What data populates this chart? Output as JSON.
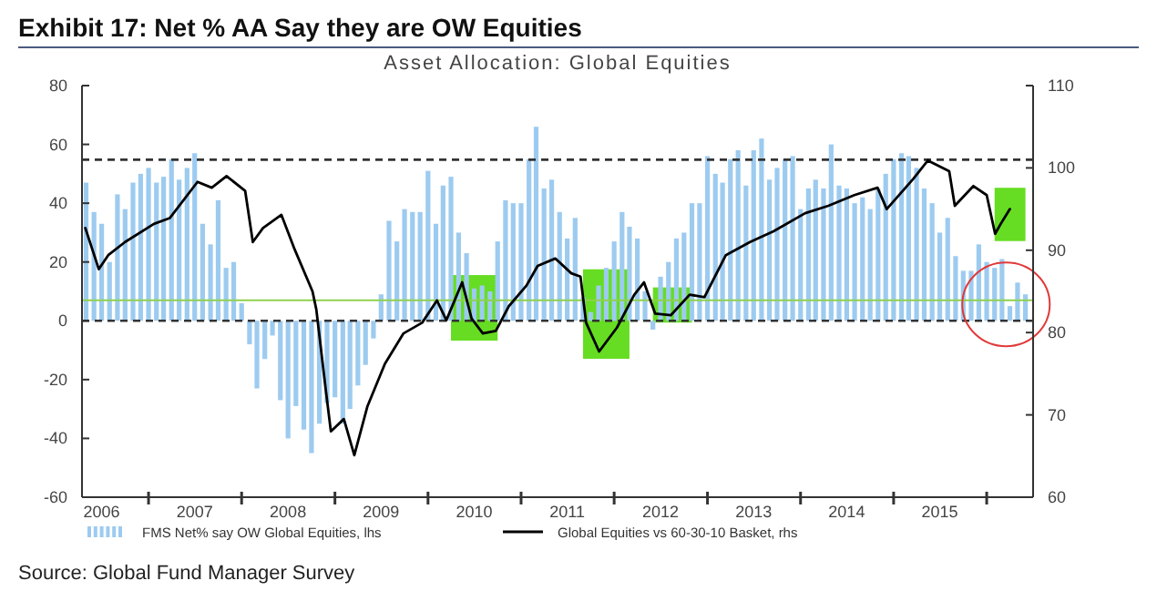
{
  "chart_data": {
    "type": "bar",
    "title": "Exhibit 17: Net % AA Say they are OW Equities",
    "subtitle": "Asset Allocation: Global Equities",
    "annotations": [
      "Source: Global Fund Manager Survey"
    ],
    "xlim": [
      "2006-04-15",
      "2016-07"
    ],
    "xticks": [
      {
        "value": "2006-07",
        "label": "2006"
      },
      {
        "value": "2007-01",
        "label": null
      },
      {
        "value": "2007-07",
        "label": "2007"
      },
      {
        "value": "2008-01",
        "label": null
      },
      {
        "value": "2008-07",
        "label": "2008"
      },
      {
        "value": "2009-01",
        "label": null
      },
      {
        "value": "2009-07",
        "label": "2009"
      },
      {
        "value": "2010-01",
        "label": null
      },
      {
        "value": "2010-07",
        "label": "2010"
      },
      {
        "value": "2011-01",
        "label": null
      },
      {
        "value": "2011-07",
        "label": "2011"
      },
      {
        "value": "2012-01",
        "label": null
      },
      {
        "value": "2012-07",
        "label": "2012"
      },
      {
        "value": "2013-01",
        "label": null
      },
      {
        "value": "2013-07",
        "label": "2013"
      },
      {
        "value": "2014-01",
        "label": null
      },
      {
        "value": "2014-07",
        "label": "2014"
      },
      {
        "value": "2015-01",
        "label": null
      },
      {
        "value": "2015-07",
        "label": "2015"
      },
      {
        "value": "2016-01",
        "label": null
      }
    ],
    "ylim": [
      -60,
      80
    ],
    "yticks": [
      -60,
      -40,
      -20,
      0,
      20,
      40,
      60,
      80
    ],
    "y2lim": [
      60,
      110
    ],
    "y2ticks": [
      60,
      70,
      80,
      90,
      100,
      110
    ],
    "grid": false,
    "legend": "bottom",
    "series": [
      {
        "name": "FMS Net% say OW Global Equities, lhs",
        "color": "#9dcbf0",
        "x": [
          "2006-05",
          "2006-06",
          "2006-07",
          "2006-08",
          "2006-09",
          "2006-10",
          "2006-11",
          "2006-12",
          "2007-01",
          "2007-02",
          "2007-03",
          "2007-04",
          "2007-05",
          "2007-06",
          "2007-07",
          "2007-08",
          "2007-09",
          "2007-10",
          "2007-11",
          "2007-12",
          "2008-01",
          "2008-02",
          "2008-03",
          "2008-04",
          "2008-05",
          "2008-06",
          "2008-07",
          "2008-08",
          "2008-09",
          "2008-10",
          "2008-11",
          "2008-12",
          "2009-01",
          "2009-02",
          "2009-03",
          "2009-04",
          "2009-05",
          "2009-06",
          "2009-07",
          "2009-08",
          "2009-09",
          "2009-10",
          "2009-11",
          "2009-12",
          "2010-01",
          "2010-02",
          "2010-03",
          "2010-04",
          "2010-05",
          "2010-06",
          "2010-07",
          "2010-08",
          "2010-09",
          "2010-10",
          "2010-11",
          "2010-12",
          "2011-01",
          "2011-02",
          "2011-03",
          "2011-04",
          "2011-05",
          "2011-06",
          "2011-07",
          "2011-08",
          "2011-09",
          "2011-10",
          "2011-11",
          "2011-12",
          "2012-01",
          "2012-02",
          "2012-03",
          "2012-04",
          "2012-05",
          "2012-06",
          "2012-07",
          "2012-08",
          "2012-09",
          "2012-10",
          "2012-11",
          "2012-12",
          "2013-01",
          "2013-02",
          "2013-03",
          "2013-04",
          "2013-05",
          "2013-06",
          "2013-07",
          "2013-08",
          "2013-09",
          "2013-10",
          "2013-11",
          "2013-12",
          "2014-01",
          "2014-02",
          "2014-03",
          "2014-04",
          "2014-05",
          "2014-06",
          "2014-07",
          "2014-08",
          "2014-09",
          "2014-10",
          "2014-11",
          "2014-12",
          "2015-01",
          "2015-02",
          "2015-03",
          "2015-04",
          "2015-05",
          "2015-06",
          "2015-07",
          "2015-08",
          "2015-09",
          "2015-10",
          "2015-11",
          "2015-12",
          "2016-01",
          "2016-02",
          "2016-03",
          "2016-04",
          "2016-05",
          "2016-06"
        ],
        "values": [
          47,
          37,
          33,
          20,
          43,
          38,
          47,
          50,
          52,
          47,
          49,
          55,
          48,
          52,
          57,
          33,
          26,
          41,
          18,
          20,
          6,
          -8,
          -23,
          -13,
          -5,
          -27,
          -40,
          -29,
          -37,
          -45,
          -35,
          -28,
          -26,
          -35,
          -30,
          -22,
          -15,
          -6,
          9,
          34,
          27,
          38,
          37,
          37,
          51,
          33,
          46,
          49,
          30,
          23,
          11,
          12,
          10,
          27,
          41,
          40,
          40,
          55,
          66,
          45,
          48,
          37,
          28,
          35,
          8,
          3,
          12,
          18,
          27,
          37,
          32,
          28,
          10,
          -3,
          15,
          20,
          28,
          30,
          40,
          40,
          56,
          50,
          47,
          55,
          58,
          46,
          58,
          62,
          48,
          52,
          55,
          56,
          38,
          45,
          48,
          45,
          60,
          46,
          45,
          40,
          42,
          38,
          45,
          50,
          55,
          57,
          56,
          52,
          45,
          40,
          30,
          35,
          22,
          17,
          17,
          26,
          20,
          18,
          21,
          5,
          13,
          9
        ]
      },
      {
        "type": "line",
        "axis": "y2",
        "name": "Global Equities vs 60-30-10 Basket, rhs",
        "color": "#000000",
        "x": [
          "2006-04-28",
          "2006-06-20",
          "2006-07-27",
          "2006-10-01",
          "2007-01-22",
          "2007-03-25",
          "2007-07-12",
          "2007-09-06",
          "2007-11-03",
          "2008-01-15",
          "2008-02-14",
          "2008-03-25",
          "2008-06-05",
          "2008-07-27",
          "2008-10-05",
          "2008-10-20",
          "2008-11-25",
          "2008-12-16",
          "2009-02-05",
          "2009-03-18",
          "2009-05-08",
          "2009-07-16",
          "2009-09-27",
          "2009-12-09",
          "2010-02-05",
          "2010-03-14",
          "2010-05-15",
          "2010-06-21",
          "2010-08-04",
          "2010-09-24",
          "2010-11-14",
          "2011-01-22",
          "2011-03-07",
          "2011-05-15",
          "2011-07-17",
          "2011-08-22",
          "2011-09-13",
          "2011-11-03",
          "2012-01-12",
          "2012-03-20",
          "2012-04-27",
          "2012-06-10",
          "2012-08-10",
          "2012-10-23",
          "2012-12-20",
          "2013-03-14",
          "2013-06-17",
          "2013-09-17",
          "2014-01-19",
          "2014-04-20",
          "2014-07-31",
          "2014-10-30",
          "2014-12-05",
          "2015-03-20",
          "2015-05-15",
          "2015-08-07",
          "2015-08-29",
          "2015-11-10",
          "2016-01-01",
          "2016-02-03",
          "2016-02-25",
          "2016-04-01"
        ],
        "values": [
          92.7,
          87.7,
          89.4,
          91,
          93.2,
          93.9,
          98.3,
          97.6,
          99,
          97.2,
          91,
          92.7,
          94.3,
          90.1,
          85,
          82.8,
          73.3,
          68,
          69.5,
          65.1,
          71,
          76.2,
          79.9,
          81.2,
          83.9,
          81.5,
          86.1,
          81.7,
          79.9,
          80.2,
          83.2,
          85.7,
          88.1,
          89,
          87.2,
          86.8,
          81.2,
          77.7,
          80.6,
          84.6,
          86.1,
          82.3,
          82.1,
          84.6,
          84.3,
          89.4,
          91,
          92.3,
          94.5,
          95.4,
          96.7,
          97.6,
          95,
          98.7,
          100.9,
          99.6,
          95.4,
          97.8,
          96.7,
          92,
          93.2,
          95
        ]
      }
    ],
    "ref_lines": [
      {
        "axis": "y",
        "value": 0,
        "line_style": "dashed",
        "color": "#333333"
      },
      {
        "axis": "y2",
        "value": 101,
        "line_style": "dashed",
        "color": "#333333"
      },
      {
        "axis": "y",
        "value": 7,
        "line_style": "solid",
        "color": "#8fd14f"
      }
    ],
    "bands": [
      {
        "axis": "x",
        "from": "2010-04",
        "to": "2010-10",
        "color": "#66dd22"
      },
      {
        "axis": "x",
        "from": "2011-09",
        "to": "2012-03",
        "color": "#66dd22"
      },
      {
        "axis": "x",
        "from": "2012-06",
        "to": "2012-11",
        "color": "#66dd22"
      },
      {
        "axis": "x",
        "from": "2016-02",
        "to": "2016-06",
        "color": "#66dd22"
      }
    ]
  }
}
